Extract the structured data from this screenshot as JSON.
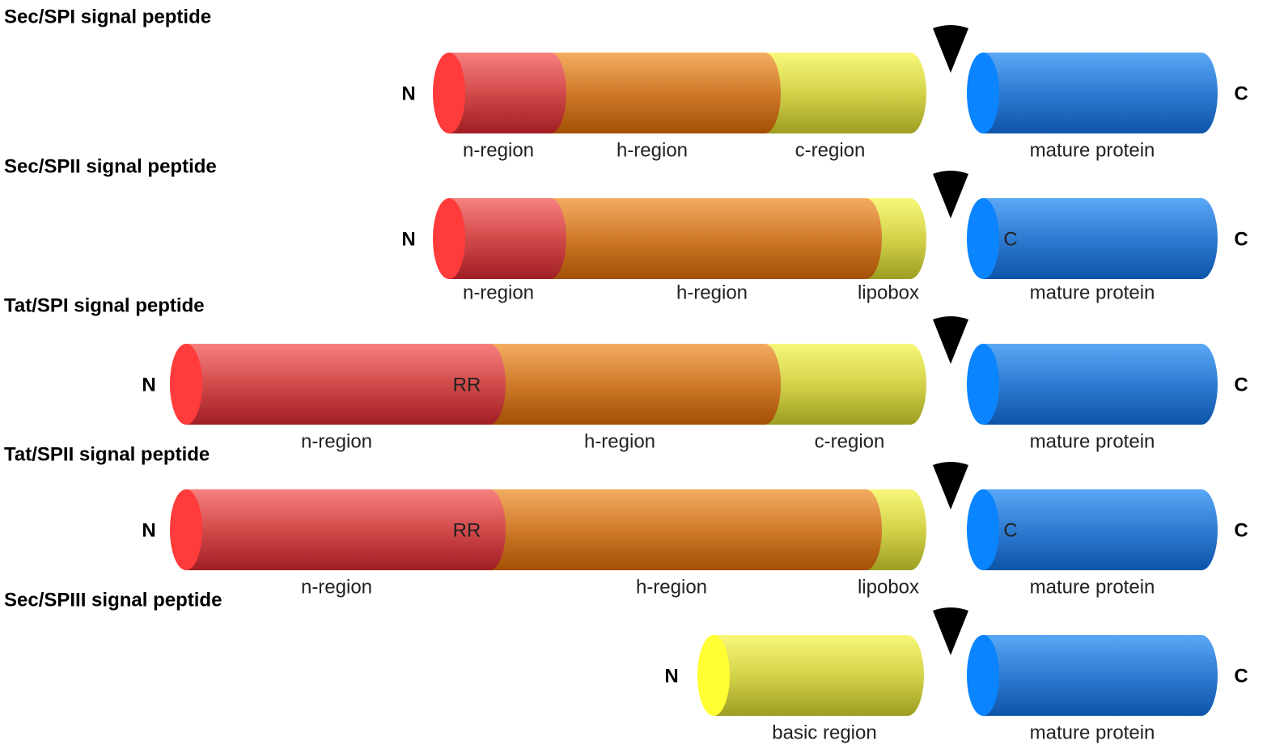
{
  "rows": [
    {
      "title": "Sec/SPI signal peptide",
      "n_label": "N",
      "c_label": "C",
      "segments": [
        {
          "type": "n",
          "label": "n-region"
        },
        {
          "type": "h",
          "label": "h-region"
        },
        {
          "type": "c",
          "label": "c-region"
        }
      ],
      "mature_label": "mature protein"
    },
    {
      "title": "Sec/SPII signal peptide",
      "n_label": "N",
      "c_label": "C",
      "segments": [
        {
          "type": "n",
          "label": "n-region"
        },
        {
          "type": "h",
          "label": "h-region"
        },
        {
          "type": "c",
          "label": "lipobox"
        }
      ],
      "mature_label": "mature protein",
      "mature_inner": "C"
    },
    {
      "title": "Tat/SPI signal peptide",
      "n_label": "N",
      "c_label": "C",
      "segments": [
        {
          "type": "n",
          "label": "n-region",
          "inner": "RR"
        },
        {
          "type": "h",
          "label": "h-region"
        },
        {
          "type": "c",
          "label": "c-region"
        }
      ],
      "mature_label": "mature protein"
    },
    {
      "title": "Tat/SPII signal peptide",
      "n_label": "N",
      "c_label": "C",
      "segments": [
        {
          "type": "n",
          "label": "n-region",
          "inner": "RR"
        },
        {
          "type": "h",
          "label": "h-region"
        },
        {
          "type": "c",
          "label": "lipobox"
        }
      ],
      "mature_label": "mature protein",
      "mature_inner": "C"
    },
    {
      "title": "Sec/SPIII signal peptide",
      "n_label": "N",
      "c_label": "C",
      "segments": [
        {
          "type": "b",
          "label": "basic region"
        }
      ],
      "mature_label": "mature protein"
    }
  ],
  "colors": {
    "n_region": "#d94545",
    "n_cap": "#ff3b3b",
    "h_region": "#d07a25",
    "c_region": "#d5d54a",
    "basic_cap": "#ffff33",
    "mature": "#2f80d8",
    "mature_cap": "#0a84ff",
    "cleavage_marker": "#000000"
  }
}
